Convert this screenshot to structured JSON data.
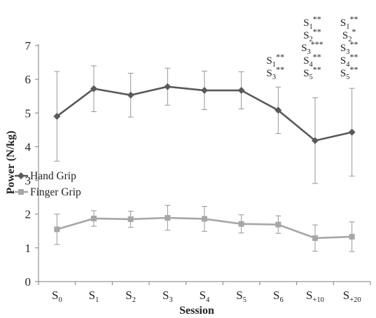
{
  "chart_data": {
    "type": "line",
    "ylabel": "Power (N/kg)",
    "xlabel": "Session",
    "ylim": [
      0,
      7
    ],
    "yticks": [
      "0",
      "1",
      "2",
      "3",
      "4",
      "5",
      "6",
      "7"
    ],
    "grid": false,
    "legend_position": "left-middle",
    "categories": [
      {
        "base": "S",
        "sub": "0"
      },
      {
        "base": "S",
        "sub": "1"
      },
      {
        "base": "S",
        "sub": "2"
      },
      {
        "base": "S",
        "sub": "3"
      },
      {
        "base": "S",
        "sub": "4"
      },
      {
        "base": "S",
        "sub": "5"
      },
      {
        "base": "S",
        "sub": "6"
      },
      {
        "base": "S",
        "sub": "+10"
      },
      {
        "base": "S",
        "sub": "+20"
      }
    ],
    "series": [
      {
        "name": "Hand Grip",
        "color": "#595959",
        "marker": "diamond",
        "values": [
          4.9,
          5.72,
          5.53,
          5.78,
          5.67,
          5.67,
          5.08,
          4.18,
          4.43
        ],
        "errors": [
          1.33,
          0.68,
          0.65,
          0.55,
          0.57,
          0.55,
          0.69,
          1.27,
          1.3
        ]
      },
      {
        "name": "Finger Grip",
        "color": "#a6a6a6",
        "marker": "square",
        "values": [
          1.55,
          1.87,
          1.85,
          1.89,
          1.86,
          1.71,
          1.69,
          1.29,
          1.33
        ],
        "errors": [
          0.45,
          0.23,
          0.24,
          0.37,
          0.37,
          0.27,
          0.26,
          0.39,
          0.44
        ]
      }
    ],
    "annotations": [
      {
        "category": "S6",
        "lines": [
          {
            "base": "S",
            "sub": "1",
            "sup": "**"
          },
          {
            "base": "S",
            "sub": "3",
            "sup": "**"
          }
        ]
      },
      {
        "category": "S+10",
        "lines": [
          {
            "base": "S",
            "sub": "1",
            "sup": "**"
          },
          {
            "base": "S",
            "sub": "2",
            "sup": "**"
          },
          {
            "base": "S",
            "sub": "3",
            "sup": "***"
          },
          {
            "base": "S",
            "sub": "4",
            "sup": "**"
          },
          {
            "base": "S",
            "sub": "5",
            "sup": "**"
          }
        ]
      },
      {
        "category": "S+20",
        "lines": [
          {
            "base": "S",
            "sub": "1",
            "sup": "**"
          },
          {
            "base": "S",
            "sub": "2",
            "sup": "*"
          },
          {
            "base": "S",
            "sub": "3",
            "sup": "**"
          },
          {
            "base": "S",
            "sub": "4",
            "sup": "**"
          },
          {
            "base": "S",
            "sub": "5",
            "sup": "**"
          }
        ]
      }
    ]
  }
}
